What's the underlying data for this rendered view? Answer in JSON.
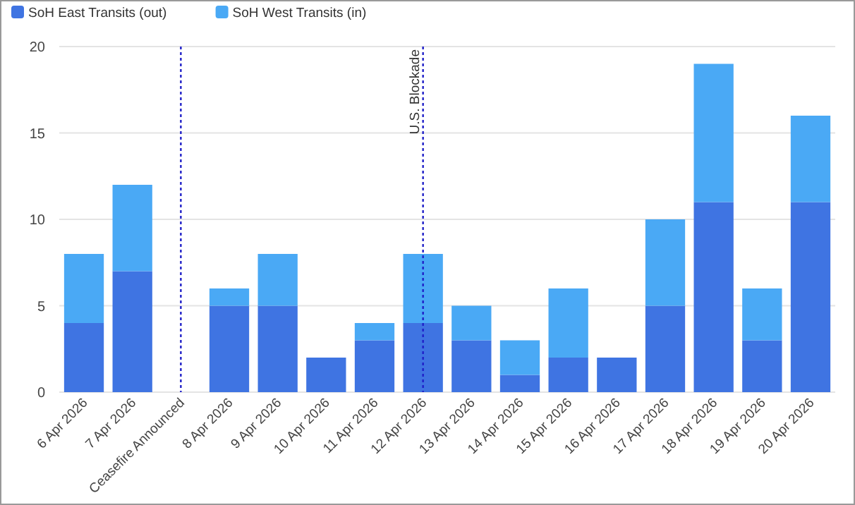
{
  "chart_data": {
    "type": "bar",
    "stacked": true,
    "categories": [
      "6 Apr 2026",
      "7 Apr 2026",
      "Ceasefire Announced",
      "8 Apr 2026",
      "9 Apr 2026",
      "10 Apr 2026",
      "11 Apr 2026",
      "12 Apr 2026",
      "13 Apr 2026",
      "14 Apr 2026",
      "15 Apr 2026",
      "16 Apr 2026",
      "17 Apr 2026",
      "18 Apr 2026",
      "19 Apr 2026",
      "20 Apr 2026"
    ],
    "series": [
      {
        "name": "SoH East Transits (out)",
        "color": "#3f74e2",
        "values": [
          4,
          7,
          null,
          5,
          5,
          2,
          3,
          4,
          3,
          1,
          2,
          2,
          5,
          11,
          3,
          11
        ]
      },
      {
        "name": "SoH West Transits (in)",
        "color": "#4aa9f5",
        "values": [
          4,
          5,
          null,
          1,
          3,
          0,
          1,
          4,
          2,
          2,
          4,
          0,
          5,
          8,
          3,
          5
        ]
      }
    ],
    "ylim": [
      0,
      20
    ],
    "yticks": [
      0,
      5,
      10,
      15,
      20
    ],
    "grid": "y",
    "legend": "top left",
    "ref_lines": [
      {
        "axis": "x",
        "value": "Ceasefire Announced",
        "label": null,
        "color": "#2020c8",
        "line_style": "dotted"
      },
      {
        "axis": "x",
        "value": "12 Apr 2026",
        "label": "U.S. Blockade",
        "color": "#2020c8",
        "line_style": "dotted"
      }
    ]
  }
}
